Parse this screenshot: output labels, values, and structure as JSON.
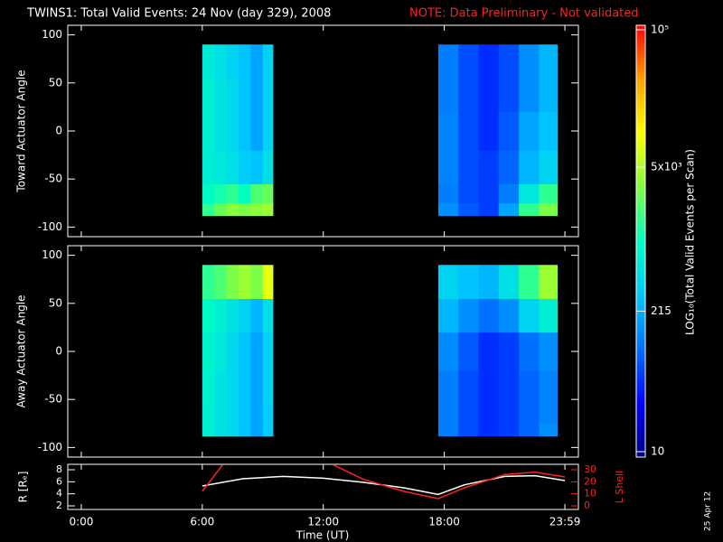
{
  "figure": {
    "title": "TWINS1: Total Valid Events: 24 Nov (day 329), 2008",
    "note": "NOTE: Data Preliminary - Not validated",
    "xlabel": "Time (UT)",
    "xlim": [
      -0.67,
      24.65
    ],
    "xticks": [
      {
        "value": 0,
        "label": "0:00"
      },
      {
        "value": 6,
        "label": "6:00"
      },
      {
        "value": 12,
        "label": "12:00"
      },
      {
        "value": 18,
        "label": "18:00"
      },
      {
        "value": 23.98,
        "label": "23:59"
      }
    ],
    "date_stamp": "25 Apr 12",
    "colorbar": {
      "label": "LOG₁₀(Total Valid Events per Scan)",
      "scale": "log",
      "lim": [
        10,
        100000
      ],
      "ticks": [
        10,
        215,
        {
          "value": 5000,
          "label": "5x10³"
        },
        {
          "value": 100000,
          "label": "10⁵"
        }
      ],
      "colors": [
        "#000080",
        "#0000ff",
        "#0070ff",
        "#00c8ff",
        "#00ffc0",
        "#80ff40",
        "#ffff00",
        "#ffa000",
        "#ff0000"
      ]
    }
  },
  "chart_data": [
    {
      "type": "heatmap",
      "ylabel": "Toward Actuator Angle",
      "ylim": [
        -110,
        110
      ],
      "yticks": [
        -100,
        -50,
        0,
        50,
        100
      ],
      "y_edges": [
        -88,
        -75,
        -55,
        -20,
        20,
        55,
        90
      ],
      "blocks": [
        {
          "x_edges": [
            6.0,
            6.6,
            7.2,
            7.8,
            8.4,
            9.0,
            9.5
          ],
          "z": [
            [
              1500,
              2500,
              3500,
              3000,
              3500,
              4000
            ],
            [
              900,
              1200,
              1500,
              1000,
              2000,
              2500
            ],
            [
              700,
              600,
              500,
              350,
              300,
              500
            ],
            [
              700,
              550,
              450,
              300,
              200,
              400
            ],
            [
              700,
              550,
              450,
              300,
              200,
              400
            ],
            [
              650,
              500,
              400,
              300,
              200,
              400
            ]
          ]
        },
        {
          "x_edges": [
            17.7,
            18.7,
            19.7,
            20.7,
            21.7,
            22.7,
            23.6
          ],
          "z": [
            [
              150,
              80,
              60,
              200,
              1500,
              3000
            ],
            [
              120,
              70,
              60,
              120,
              600,
              1500
            ],
            [
              130,
              70,
              60,
              90,
              250,
              400
            ],
            [
              130,
              70,
              50,
              80,
              200,
              300
            ],
            [
              120,
              70,
              50,
              70,
              150,
              250
            ],
            [
              120,
              70,
              50,
              70,
              150,
              250
            ]
          ]
        }
      ]
    },
    {
      "type": "heatmap",
      "ylabel": "Away Actuator Angle",
      "ylim": [
        -110,
        110
      ],
      "yticks": [
        -100,
        -50,
        0,
        50,
        100
      ],
      "y_edges": [
        -88,
        -75,
        -55,
        -20,
        20,
        55,
        90
      ],
      "blocks": [
        {
          "x_edges": [
            6.0,
            6.6,
            7.2,
            7.8,
            8.4,
            9.0,
            9.5
          ],
          "z": [
            [
              700,
              550,
              450,
              300,
              200,
              350
            ],
            [
              700,
              550,
              450,
              300,
              200,
              350
            ],
            [
              750,
              550,
              450,
              300,
              200,
              400
            ],
            [
              800,
              600,
              450,
              300,
              200,
              400
            ],
            [
              900,
              700,
              550,
              400,
              250,
              500
            ],
            [
              1500,
              2000,
              3000,
              4000,
              3000,
              8000
            ]
          ]
        },
        {
          "x_edges": [
            17.7,
            18.7,
            19.7,
            20.7,
            21.7,
            22.7,
            23.6
          ],
          "z": [
            [
              120,
              70,
              50,
              60,
              90,
              150
            ],
            [
              120,
              70,
              50,
              60,
              90,
              130
            ],
            [
              120,
              70,
              50,
              60,
              90,
              130
            ],
            [
              140,
              80,
              50,
              60,
              100,
              150
            ],
            [
              250,
              150,
              100,
              150,
              400,
              700
            ],
            [
              400,
              300,
              250,
              500,
              1500,
              4000
            ]
          ]
        }
      ]
    },
    {
      "type": "line",
      "ylabel": "R [Rₑ]",
      "ylim": [
        1.4,
        8.9
      ],
      "yticks": [
        2,
        4,
        6,
        8
      ],
      "y2label": "L Shell",
      "y2lim": [
        -3,
        34.5
      ],
      "y2ticks": [
        0,
        10,
        20,
        30
      ],
      "series": [
        {
          "name": "R",
          "color": "#ffffff",
          "x": [
            6,
            8,
            10,
            12,
            14,
            16,
            17.7,
            19,
            21,
            22.5,
            23.98
          ],
          "values": [
            5.3,
            6.5,
            6.9,
            6.6,
            5.9,
            5.0,
            3.9,
            5.5,
            6.9,
            7.0,
            6.2
          ]
        },
        {
          "name": "L Shell",
          "color": "#ff2020",
          "axis": "y2",
          "x": [
            6,
            7,
            10,
            12.5,
            14,
            16,
            17.7,
            19,
            21,
            22.5,
            23.98
          ],
          "values": [
            12,
            34,
            null,
            34,
            22,
            12,
            6,
            15,
            26,
            28,
            24
          ]
        }
      ]
    }
  ]
}
